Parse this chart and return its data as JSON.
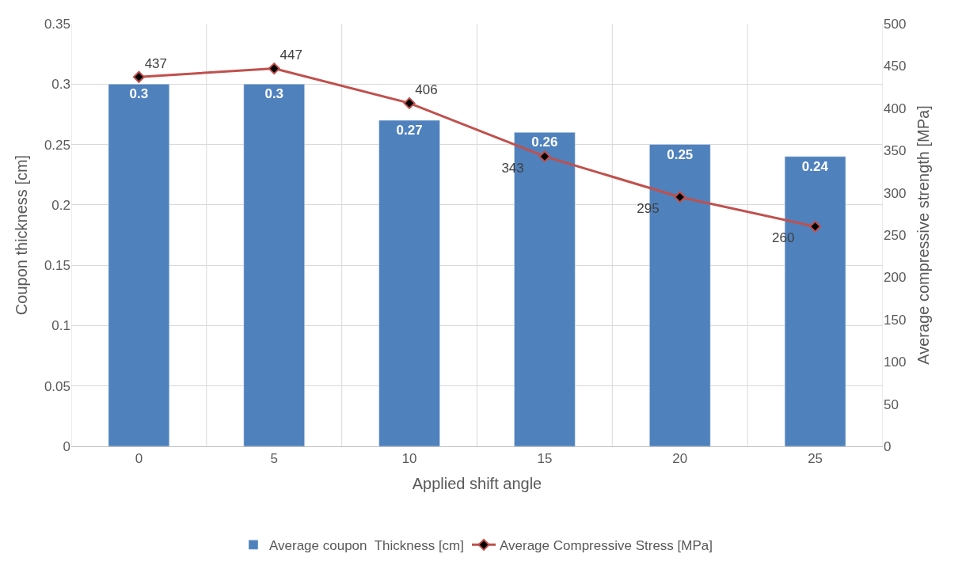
{
  "chart_data": {
    "type": "bar",
    "xlabel": "Applied shift angle",
    "ylabel": "Coupon thickness [cm]",
    "y2label": "Average compressive strength [MPa]",
    "categories": [
      "0",
      "5",
      "10",
      "15",
      "20",
      "25"
    ],
    "series": [
      {
        "name": "Average coupon  Thickness [cm]",
        "color": "#4f81bd",
        "values": [
          0.3,
          0.3,
          0.27,
          0.26,
          0.25,
          0.24
        ]
      },
      {
        "name": "Average Compressive Stress [MPa]",
        "type": "line",
        "axis": "y2",
        "color": "#c0504d",
        "marker": "diamond",
        "values": [
          437,
          447,
          406,
          343,
          295,
          260
        ]
      }
    ],
    "ylim": [
      0,
      0.35
    ],
    "yticks": [
      0,
      0.05,
      0.1,
      0.15,
      0.2,
      0.25,
      0.3,
      0.35
    ],
    "y2lim": [
      0,
      500
    ],
    "y2ticks": [
      0,
      50,
      100,
      150,
      200,
      250,
      300,
      350,
      400,
      450,
      500
    ],
    "data_labels": true,
    "grid": true,
    "legend": "bottom"
  }
}
